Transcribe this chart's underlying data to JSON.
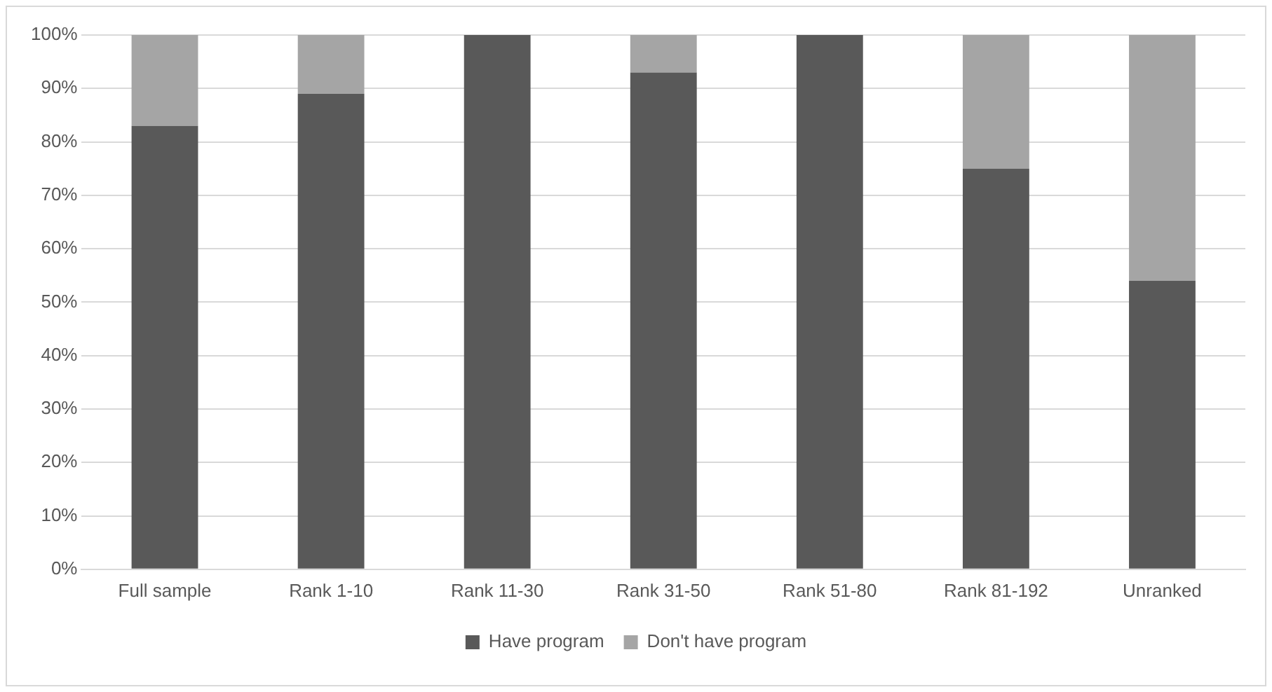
{
  "chart_data": {
    "type": "bar",
    "stacked": true,
    "categories": [
      "Full sample",
      "Rank 1-10",
      "Rank 11-30",
      "Rank 31-50",
      "Rank 51-80",
      "Rank 81-192",
      "Unranked"
    ],
    "series": [
      {
        "name": "Have program",
        "color": "#595959",
        "values": [
          83,
          89,
          100,
          93,
          100,
          75,
          54
        ]
      },
      {
        "name": "Don't have program",
        "color": "#a5a5a5",
        "values": [
          17,
          11,
          0,
          7,
          0,
          25,
          46
        ]
      }
    ],
    "ylim": [
      0,
      100
    ],
    "yticks": [
      {
        "value": 0,
        "label": "0%"
      },
      {
        "value": 10,
        "label": "10%"
      },
      {
        "value": 20,
        "label": "20%"
      },
      {
        "value": 30,
        "label": "30%"
      },
      {
        "value": 40,
        "label": "40%"
      },
      {
        "value": 50,
        "label": "50%"
      },
      {
        "value": 60,
        "label": "60%"
      },
      {
        "value": 70,
        "label": "70%"
      },
      {
        "value": 80,
        "label": "80%"
      },
      {
        "value": 90,
        "label": "90%"
      },
      {
        "value": 100,
        "label": "100%"
      }
    ],
    "grid": "y",
    "legend": "bottom"
  }
}
